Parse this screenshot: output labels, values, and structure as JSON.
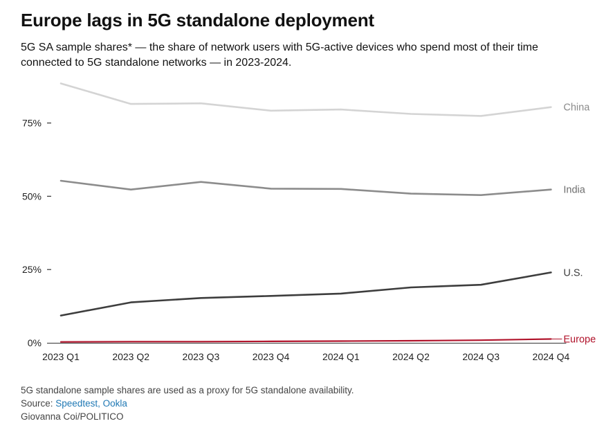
{
  "header": {
    "title": "Europe lags in 5G standalone deployment",
    "subtitle": "5G SA sample shares* — the share of network users with 5G-active devices who spend most of their time connected to 5G standalone networks — in 2023-2024."
  },
  "footer": {
    "note": "5G standalone sample shares are used as a proxy for 5G standalone availability.",
    "source_prefix": "Source: ",
    "source_links": "Speedtest, Ookla",
    "credit": "Giovanna Coi/POLITICO"
  },
  "chart_data": {
    "type": "line",
    "categories": [
      "2023 Q1",
      "2023 Q2",
      "2023 Q3",
      "2023 Q4",
      "2024 Q1",
      "2024 Q2",
      "2024 Q3",
      "2024 Q4"
    ],
    "y_ticks": [
      0,
      25,
      50,
      75
    ],
    "y_tick_labels": [
      "0%",
      "25%",
      "50%",
      "75%"
    ],
    "ylim": [
      0,
      90
    ],
    "grid": false,
    "legend": "direct labels at line ends",
    "series": [
      {
        "name": "China",
        "color": "#d4d4d4",
        "values": [
          88.5,
          81.5,
          81.7,
          79.2,
          79.6,
          78.1,
          77.4,
          80.4
        ]
      },
      {
        "name": "India",
        "color": "#8c8c8c",
        "values": [
          55.3,
          52.3,
          54.9,
          52.6,
          52.5,
          50.9,
          50.4,
          52.3
        ]
      },
      {
        "name": "U.S.",
        "color": "#3d3d3d",
        "values": [
          9.3,
          13.8,
          15.3,
          16.0,
          16.8,
          18.9,
          19.8,
          24.0
        ]
      },
      {
        "name": "Europe",
        "color": "#b0122a",
        "values": [
          0.3,
          0.4,
          0.4,
          0.5,
          0.6,
          0.7,
          0.9,
          1.3
        ]
      }
    ]
  }
}
